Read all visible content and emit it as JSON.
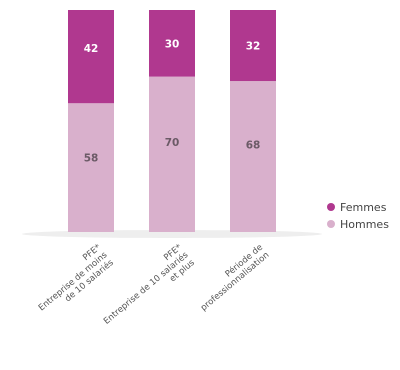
{
  "chart_data": {
    "type": "bar",
    "stacked": true,
    "categories": [
      [
        "PFE*",
        "Entreprise de moins",
        "de 10 salariés"
      ],
      [
        "PFE*",
        "Entreprise de 10 salariés",
        "et plus"
      ],
      [
        "Période de",
        "professionnalisation"
      ]
    ],
    "series": [
      {
        "name": "Hommes",
        "values": [
          58,
          70,
          68
        ],
        "color": "#d9b0cc"
      },
      {
        "name": "Femmes",
        "values": [
          42,
          30,
          32
        ],
        "color": "#b0388f"
      }
    ],
    "ylim": [
      0,
      100
    ],
    "grid": false,
    "legend": "right",
    "title": "",
    "xlabel": "",
    "ylabel": ""
  }
}
